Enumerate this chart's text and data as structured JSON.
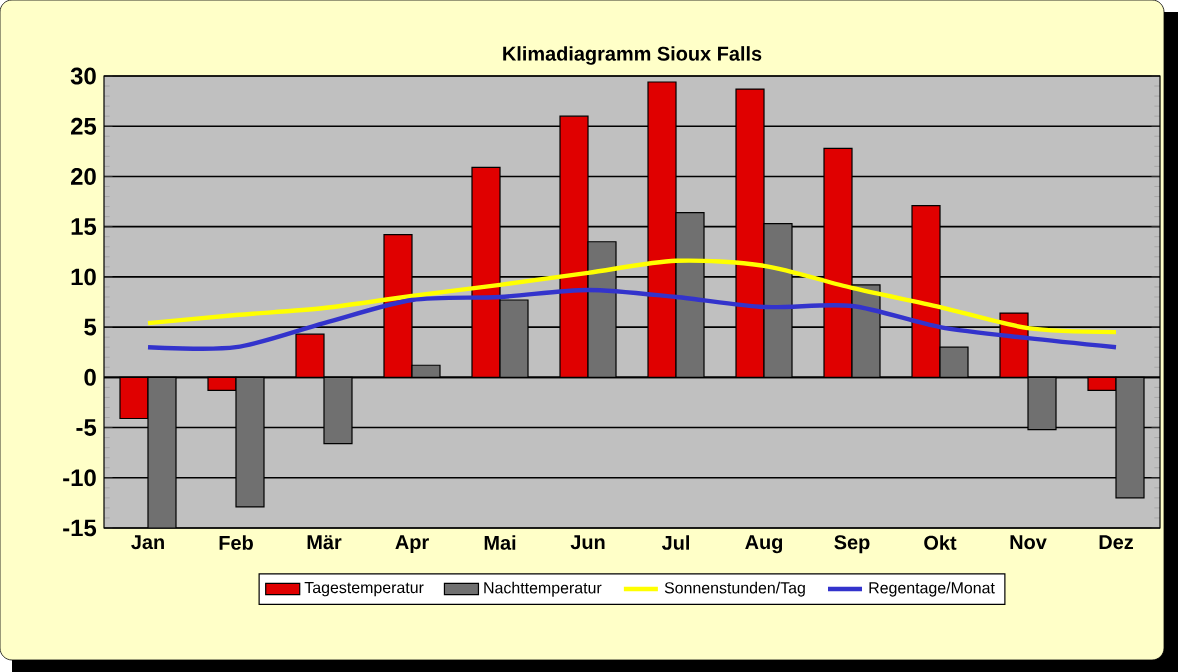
{
  "chart_data": {
    "type": "bar",
    "title": "Klimadiagramm Sioux Falls",
    "categories": [
      "Jan",
      "Feb",
      "Mär",
      "Apr",
      "Mai",
      "Jun",
      "Jul",
      "Aug",
      "Sep",
      "Okt",
      "Nov",
      "Dez"
    ],
    "series": [
      {
        "name": "Tagestemperatur",
        "color": "#e00000",
        "values": [
          -4.1,
          -1.3,
          4.3,
          14.2,
          20.9,
          26.0,
          29.4,
          28.7,
          22.8,
          17.1,
          6.4,
          -1.3
        ]
      },
      {
        "name": "Nachttemperatur",
        "color": "#707070",
        "values": [
          -15.0,
          -12.9,
          -6.6,
          1.2,
          7.7,
          13.5,
          16.4,
          15.3,
          9.2,
          3.0,
          -5.2,
          -12.0
        ]
      },
      {
        "name": "Sonnenstunden/Tag",
        "type": "line",
        "color": "#ffff00",
        "values": [
          5.4,
          6.2,
          6.9,
          8.1,
          9.2,
          10.4,
          11.6,
          11.1,
          8.9,
          7.0,
          4.9,
          4.5
        ]
      },
      {
        "name": "Regentage/Monat",
        "type": "line",
        "color": "#3333cc",
        "values": [
          3.0,
          3.0,
          5.4,
          7.7,
          8.0,
          8.7,
          8.0,
          7.0,
          7.1,
          5.0,
          3.9,
          3.0
        ]
      }
    ],
    "ylim": [
      -15,
      30
    ],
    "yticks": [
      -15,
      -10,
      -5,
      0,
      5,
      10,
      15,
      20,
      25,
      30
    ],
    "grid": "y",
    "legend": "bottom"
  }
}
